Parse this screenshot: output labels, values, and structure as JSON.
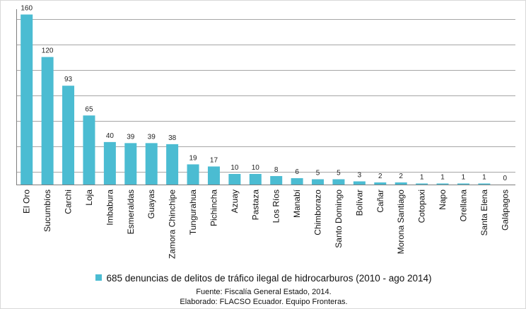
{
  "chart_data": {
    "type": "bar",
    "categories": [
      "El Oro",
      "Sucumbíos",
      "Carchi",
      "Loja",
      "Imbabura",
      "Esmeraldas",
      "Guayas",
      "Zamora Chinchipe",
      "Tungurahua",
      "Pichincha",
      "Azuay",
      "Pastaza",
      "Los Ríos",
      "Manabí",
      "Chimborazo",
      "Santo Domingo",
      "Bolívar",
      "Cañar",
      "Morona Santiago",
      "Cotopaxi",
      "Napo",
      "Orellana",
      "Santa Elena",
      "Galápagos"
    ],
    "series": [
      {
        "name": "685 denuncias de delitos de tráfico ilegal de hidrocarburos (2010 - ago 2014)",
        "values": [
          160,
          120,
          93,
          65,
          40,
          39,
          39,
          38,
          19,
          17,
          10,
          10,
          8,
          6,
          5,
          5,
          3,
          2,
          2,
          1,
          1,
          1,
          1,
          0
        ],
        "color": "#4bbcd2"
      }
    ],
    "title": "",
    "xlabel": "",
    "ylabel": "",
    "ylim": [
      0,
      165
    ],
    "grid": true,
    "legend": "bottom",
    "data_labels": true
  },
  "footer": {
    "source": "Fuente: Fiscalía General Estado, 2014.",
    "credit": "Elaborado: FLACSO Ecuador.  Equipo Fronteras."
  },
  "colors": {
    "bar": "#4bbcd2",
    "grid": "#a6a6a6"
  }
}
